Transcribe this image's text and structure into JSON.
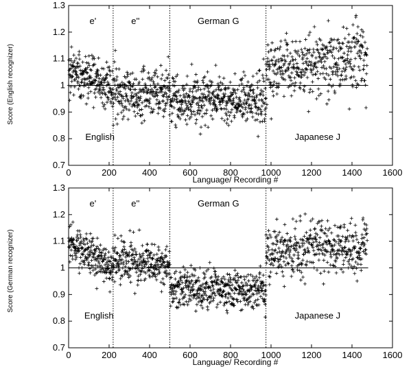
{
  "figure": {
    "x_axis_label": "Language/ Recording #",
    "x_tick_labels": [
      "0",
      "200",
      "400",
      "600",
      "800",
      "1000",
      "1200",
      "1400",
      "1600"
    ]
  },
  "chart_data": [
    {
      "type": "scatter",
      "ylabel": "Score (English recognizer)",
      "xlabel": "Language/ Recording #",
      "xlim": [
        0,
        1600
      ],
      "ylim": [
        0.7,
        1.3
      ],
      "y_tick_labels": [
        "0.7",
        "0.8",
        "0.9",
        "1",
        "1.1",
        "1.2",
        "1.3"
      ],
      "reference_line_y": 1.0,
      "boundaries": [
        220,
        500,
        975
      ],
      "region_labels": [
        {
          "text": "e'",
          "x": 120,
          "y": 1.23
        },
        {
          "text": "e''",
          "x": 330,
          "y": 1.23
        },
        {
          "text": "German G",
          "x": 740,
          "y": 1.23
        },
        {
          "text": "English",
          "x": 155,
          "y": 0.795
        },
        {
          "text": "Japanese J",
          "x": 1230,
          "y": 0.795
        }
      ],
      "series": [
        {
          "marker": "plus",
          "segments": [
            {
              "x_start": 1,
              "x_end": 220,
              "count": 220,
              "start_mean": 1.06,
              "end_mean": 0.99,
              "spread": 0.042
            },
            {
              "x_start": 221,
              "x_end": 500,
              "count": 260,
              "start_mean": 0.975,
              "end_mean": 0.96,
              "spread": 0.048
            },
            {
              "x_start": 501,
              "x_end": 975,
              "count": 440,
              "start_mean": 0.95,
              "end_mean": 0.95,
              "spread": 0.048
            },
            {
              "x_start": 976,
              "x_end": 1475,
              "count": 420,
              "start_mean": 1.06,
              "end_mean": 1.11,
              "spread": 0.06
            }
          ]
        }
      ]
    },
    {
      "type": "scatter",
      "ylabel": "Score (German recognizer)",
      "xlabel": "Language/ Recording #",
      "xlim": [
        0,
        1600
      ],
      "ylim": [
        0.7,
        1.3
      ],
      "y_tick_labels": [
        "0.7",
        "0.8",
        "0.9",
        "1",
        "1.1",
        "1.2",
        "1.3"
      ],
      "reference_line_y": 1.0,
      "boundaries": [
        220,
        500,
        975
      ],
      "region_labels": [
        {
          "text": "e'",
          "x": 120,
          "y": 1.23
        },
        {
          "text": "e''",
          "x": 330,
          "y": 1.23
        },
        {
          "text": "German G",
          "x": 740,
          "y": 1.23
        },
        {
          "text": "English",
          "x": 150,
          "y": 0.81
        },
        {
          "text": "Japanese J",
          "x": 1230,
          "y": 0.81
        }
      ],
      "series": [
        {
          "marker": "plus",
          "segments": [
            {
              "x_start": 1,
              "x_end": 220,
              "count": 220,
              "start_mean": 1.1,
              "end_mean": 1.0,
              "spread": 0.035
            },
            {
              "x_start": 221,
              "x_end": 500,
              "count": 260,
              "start_mean": 1.03,
              "end_mean": 1.01,
              "spread": 0.04
            },
            {
              "x_start": 501,
              "x_end": 975,
              "count": 440,
              "start_mean": 0.92,
              "end_mean": 0.92,
              "spread": 0.035
            },
            {
              "x_start": 976,
              "x_end": 1475,
              "count": 420,
              "start_mean": 1.06,
              "end_mean": 1.08,
              "spread": 0.05
            }
          ]
        }
      ]
    }
  ]
}
